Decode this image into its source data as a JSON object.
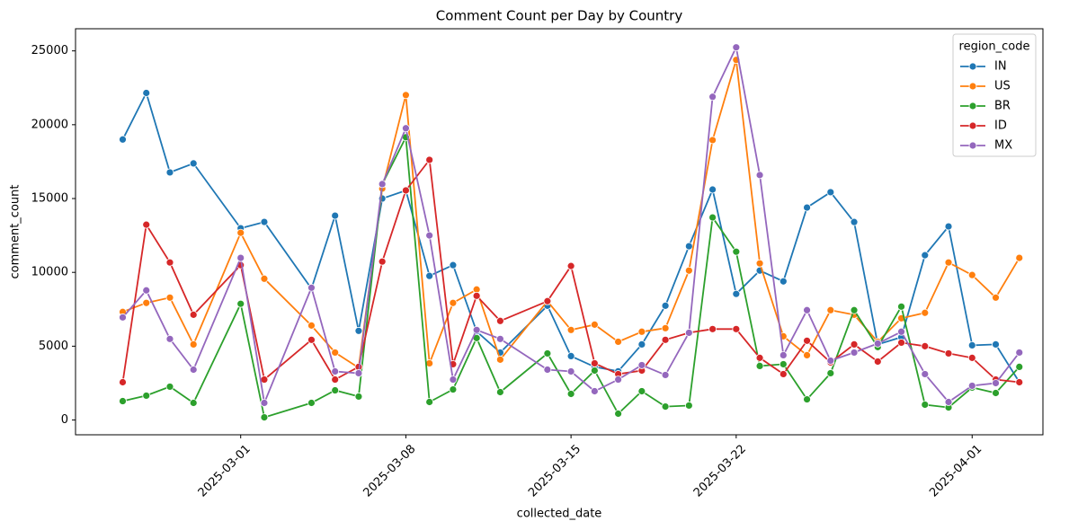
{
  "chart_data": {
    "type": "line",
    "title": "Comment Count per Day by Country",
    "x_label": "collected_date",
    "y_label": "comment_count",
    "legend_title": "region_code",
    "legend_position": "upper right",
    "x": [
      "2025-02-24",
      "2025-02-25",
      "2025-02-26",
      "2025-02-27",
      "2025-03-01",
      "2025-03-02",
      "2025-03-04",
      "2025-03-05",
      "2025-03-06",
      "2025-03-07",
      "2025-03-08",
      "2025-03-09",
      "2025-03-10",
      "2025-03-11",
      "2025-03-12",
      "2025-03-14",
      "2025-03-15",
      "2025-03-16",
      "2025-03-17",
      "2025-03-18",
      "2025-03-19",
      "2025-03-20",
      "2025-03-21",
      "2025-03-22",
      "2025-03-23",
      "2025-03-24",
      "2025-03-25",
      "2025-03-26",
      "2025-03-27",
      "2025-03-28",
      "2025-03-29",
      "2025-03-30",
      "2025-03-31",
      "2025-04-01",
      "2025-04-02",
      "2025-04-03"
    ],
    "xlim": [
      "2025-02-22",
      "2025-04-04"
    ],
    "xticks": [
      "2025-03-01",
      "2025-03-08",
      "2025-03-15",
      "2025-03-22",
      "2025-04-01"
    ],
    "ylim": [
      -1000,
      26500
    ],
    "yticks": [
      0,
      5000,
      10000,
      15000,
      20000,
      25000
    ],
    "series": [
      {
        "name": "IN",
        "color": "#1f77b4",
        "values": [
          19000,
          22150,
          16770,
          17380,
          12990,
          13415,
          8900,
          13840,
          6040,
          15000,
          15550,
          9760,
          10490,
          6000,
          4570,
          7740,
          4330,
          3600,
          3300,
          5120,
          7740,
          11770,
          15610,
          8540,
          10120,
          9390,
          14390,
          15430,
          13410,
          5120,
          5610,
          11160,
          13110,
          5060,
          5120,
          2560
        ]
      },
      {
        "name": "US",
        "color": "#ff7f0e",
        "values": [
          7320,
          7930,
          8290,
          5120,
          12680,
          9570,
          6400,
          4570,
          3540,
          15670,
          22010,
          3840,
          7930,
          8840,
          4090,
          8050,
          6100,
          6460,
          5300,
          5980,
          6220,
          10120,
          18960,
          24390,
          10610,
          5670,
          4390,
          7440,
          7130,
          5300,
          6890,
          7260,
          10670,
          9820,
          8290,
          10980
        ]
      },
      {
        "name": "BR",
        "color": "#2ca02c",
        "values": [
          1280,
          1650,
          2260,
          1160,
          7870,
          180,
          1160,
          2010,
          1590,
          15980,
          19150,
          1220,
          2070,
          5550,
          1890,
          4510,
          1770,
          3350,
          430,
          1950,
          910,
          980,
          13720,
          11400,
          3660,
          3780,
          1400,
          3170,
          7440,
          4940,
          7680,
          1040,
          850,
          2200,
          1830,
          3600
        ]
      },
      {
        "name": "ID",
        "color": "#d62728",
        "values": [
          2560,
          13230,
          10670,
          7130,
          10490,
          2740,
          5430,
          2740,
          3600,
          10730,
          15550,
          17620,
          3780,
          8410,
          6710,
          8050,
          10430,
          3840,
          3110,
          3350,
          5430,
          5910,
          6160,
          6160,
          4210,
          3110,
          5370,
          3900,
          5120,
          3960,
          5240,
          5000,
          4510,
          4210,
          2740,
          2560
        ]
      },
      {
        "name": "MX",
        "color": "#9467bd",
        "values": [
          6950,
          8780,
          5490,
          3410,
          10980,
          1160,
          8960,
          3290,
          3170,
          15980,
          19760,
          12500,
          2740,
          6100,
          5490,
          3410,
          3290,
          1950,
          2740,
          3720,
          3050,
          5910,
          21890,
          25240,
          16590,
          4390,
          7440,
          4020,
          4570,
          5180,
          5980,
          3110,
          1220,
          2320,
          2500,
          4570
        ]
      }
    ]
  }
}
